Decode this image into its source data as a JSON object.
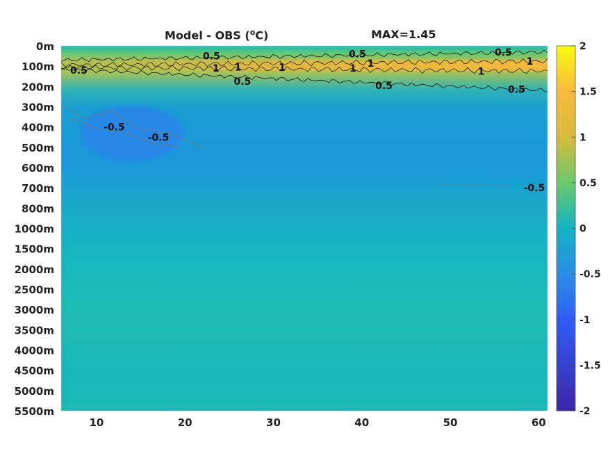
{
  "title": {
    "left_prefix": "Model - OBS (",
    "left_sup": "o",
    "left_suffix": "C)",
    "right": "MAX=1.45"
  },
  "chart_data": {
    "type": "heatmap",
    "title": "Model - OBS (oC)   MAX=1.45",
    "y_categories": [
      "0m",
      "100m",
      "200m",
      "300m",
      "400m",
      "500m",
      "600m",
      "700m",
      "800m",
      "1000m",
      "1500m",
      "2000m",
      "2500m",
      "3000m",
      "3500m",
      "4000m",
      "4500m",
      "5000m",
      "5500m"
    ],
    "x_ticks": [
      10,
      20,
      30,
      40,
      50,
      60
    ],
    "x_range": [
      6,
      61
    ],
    "colorbar": {
      "range": [
        -2,
        2
      ],
      "ticks": [
        "2",
        "1.5",
        "1",
        "0.5",
        "0",
        "-0.5",
        "-1",
        "-1.5",
        "-2"
      ],
      "colormap": "parula"
    },
    "contour_levels": [
      0.5,
      1
    ],
    "contour_labels": [
      {
        "text": "0.5",
        "x": 23,
        "depth": "50m"
      },
      {
        "text": "0.5",
        "x": 8,
        "depth": "120m"
      },
      {
        "text": "1",
        "x": 23.5,
        "depth": "110m"
      },
      {
        "text": "1",
        "x": 26,
        "depth": "105m"
      },
      {
        "text": "1",
        "x": 31,
        "depth": "105m"
      },
      {
        "text": "0.5",
        "x": 26.5,
        "depth": "175m"
      },
      {
        "text": "0.5",
        "x": 39.5,
        "depth": "40m"
      },
      {
        "text": "1",
        "x": 39,
        "depth": "110m"
      },
      {
        "text": "1",
        "x": 41,
        "depth": "85m"
      },
      {
        "text": "0.5",
        "x": 42.5,
        "depth": "195m"
      },
      {
        "text": "0.5",
        "x": 56,
        "depth": "30m"
      },
      {
        "text": "1",
        "x": 59,
        "depth": "75m"
      },
      {
        "text": "1",
        "x": 53.5,
        "depth": "125m"
      },
      {
        "text": "0.5",
        "x": 57.5,
        "depth": "215m"
      },
      {
        "text": "-0.5",
        "x": 12,
        "depth": "400m"
      },
      {
        "text": "-0.5",
        "x": 17,
        "depth": "450m"
      },
      {
        "text": "-0.5",
        "x": 59.5,
        "depth": "700m"
      }
    ],
    "max_value": 1.45,
    "colors": {
      "c_neg2": "#3e26a8",
      "c_neg1": "#2f5ef7",
      "c_neg05": "#2a8ee4",
      "c_0": "#12b3c3",
      "c_05": "#6bc96b",
      "c_1": "#d7b93c",
      "c_15": "#f8ba3d",
      "c_2": "#f9fb0e"
    }
  }
}
